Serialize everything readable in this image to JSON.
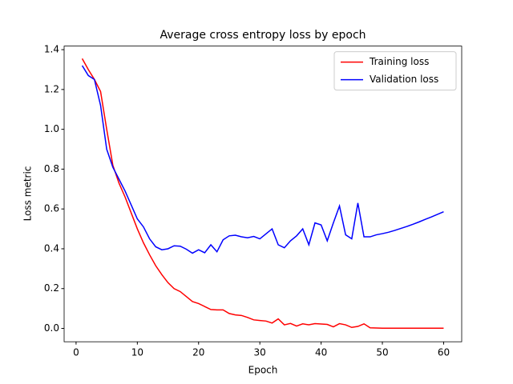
{
  "chart_data": {
    "type": "line",
    "title": "Average cross entropy loss by epoch",
    "xlabel": "Epoch",
    "ylabel": "Loss metric",
    "x": [
      1,
      2,
      3,
      4,
      5,
      6,
      7,
      8,
      9,
      10,
      11,
      12,
      13,
      14,
      15,
      16,
      17,
      18,
      19,
      20,
      21,
      22,
      23,
      24,
      25,
      26,
      27,
      28,
      29,
      30,
      31,
      32,
      33,
      34,
      35,
      36,
      37,
      38,
      39,
      40,
      41,
      42,
      43,
      44,
      45,
      46,
      47,
      48,
      49,
      50,
      51,
      52,
      53,
      54,
      55,
      56,
      57,
      58,
      59,
      60
    ],
    "series": [
      {
        "name": "Training loss",
        "color": "#ff0000",
        "values": [
          1.355,
          1.3,
          1.25,
          1.19,
          1.0,
          0.82,
          0.73,
          0.66,
          0.58,
          0.5,
          0.43,
          0.37,
          0.315,
          0.27,
          0.23,
          0.2,
          0.185,
          0.16,
          0.135,
          0.125,
          0.11,
          0.095,
          0.093,
          0.093,
          0.075,
          0.068,
          0.065,
          0.055,
          0.043,
          0.04,
          0.037,
          0.027,
          0.048,
          0.018,
          0.025,
          0.012,
          0.023,
          0.018,
          0.024,
          0.022,
          0.02,
          0.008,
          0.024,
          0.018,
          0.005,
          0.01,
          0.023,
          0.003,
          0.002,
          0.001,
          0.001,
          0.001,
          0.001,
          0.001,
          0.001,
          0.001,
          0.001,
          0.001,
          0.001,
          0.001
        ]
      },
      {
        "name": "Validation loss",
        "color": "#0000ff",
        "values": [
          1.32,
          1.27,
          1.25,
          1.12,
          0.9,
          0.81,
          0.75,
          0.69,
          0.62,
          0.55,
          0.51,
          0.45,
          0.41,
          0.395,
          0.4,
          0.415,
          0.413,
          0.398,
          0.378,
          0.395,
          0.38,
          0.42,
          0.385,
          0.445,
          0.465,
          0.468,
          0.46,
          0.455,
          0.462,
          0.45,
          0.475,
          0.5,
          0.42,
          0.405,
          0.44,
          0.465,
          0.5,
          0.42,
          0.53,
          0.52,
          0.44,
          0.53,
          0.615,
          0.47,
          0.45,
          0.63,
          0.46,
          0.46,
          0.47,
          0.476,
          0.483,
          0.492,
          0.502,
          0.512,
          0.523,
          0.535,
          0.548,
          0.56,
          0.573,
          0.586
        ]
      }
    ],
    "xlim": [
      -1.95,
      62.95
    ],
    "xticks": [
      0,
      10,
      20,
      30,
      40,
      50,
      60
    ],
    "ylim": [
      -0.067,
      1.418
    ],
    "yticks": [
      {
        "value": 0,
        "label": "0.0"
      },
      {
        "value": 0.2,
        "label": "0.2"
      },
      {
        "value": 0.4,
        "label": "0.4"
      },
      {
        "value": 0.6,
        "label": "0.6"
      },
      {
        "value": 0.8,
        "label": "0.8"
      },
      {
        "value": 1,
        "label": "1.0"
      },
      {
        "value": 1.2,
        "label": "1.2"
      },
      {
        "value": 1.4,
        "label": "1.4"
      }
    ],
    "legend": "upper right",
    "grid": false
  }
}
